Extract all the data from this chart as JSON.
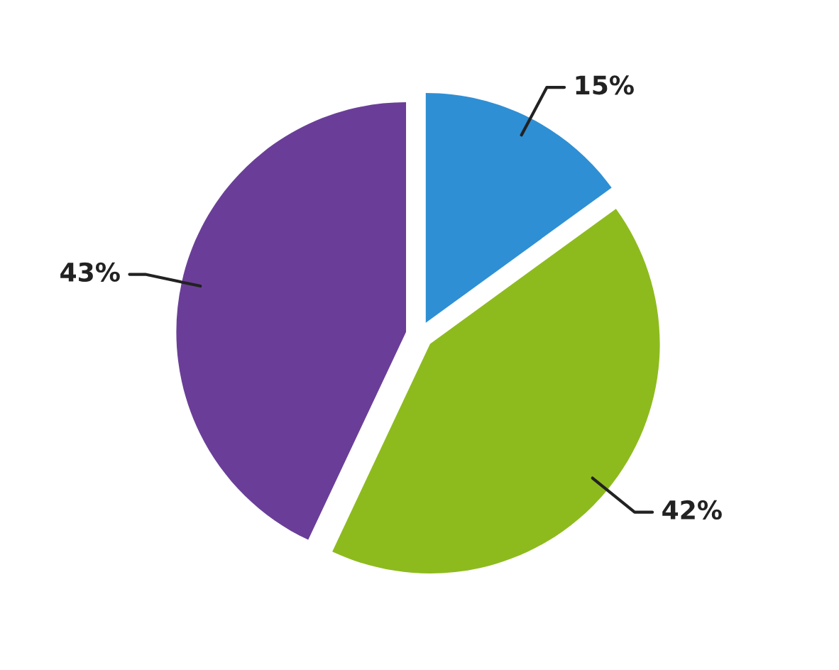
{
  "chart_data": {
    "type": "pie",
    "categories": [
      null,
      null,
      null
    ],
    "values": [
      15,
      42,
      43
    ],
    "colors": [
      "#2f8fd4",
      "#8dbb1e",
      "#6a3e98"
    ],
    "value_labels": [
      "15%",
      "42%",
      "43%"
    ]
  }
}
